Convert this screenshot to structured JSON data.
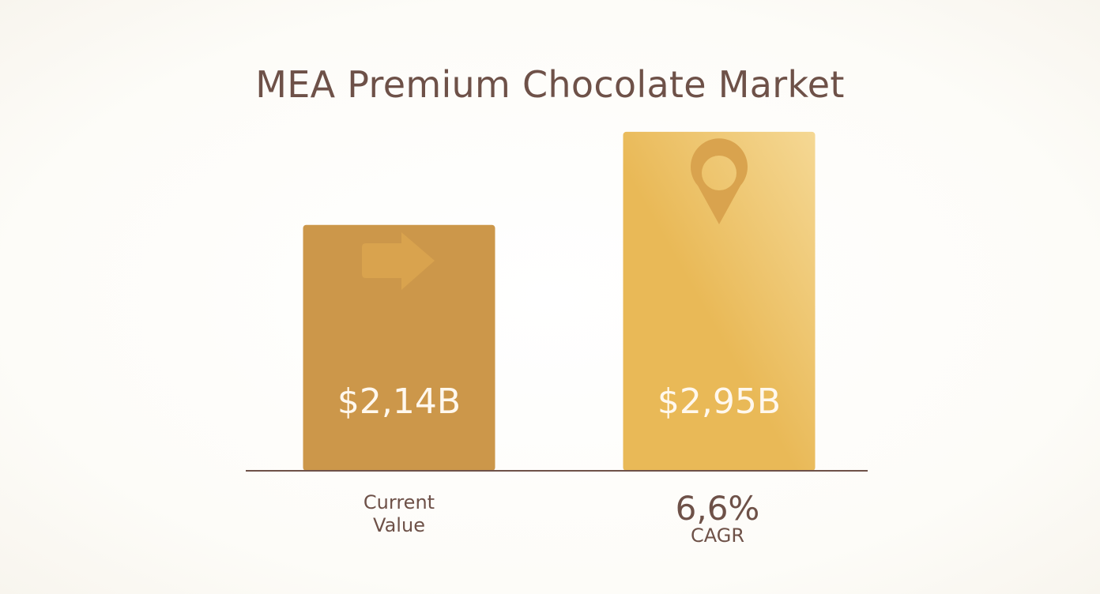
{
  "title": "MEA Premium Chocolate Market",
  "colors": {
    "title_text": "#6e5148",
    "bar_current": "#cc974a",
    "bar_future_light": "#f5d894",
    "bar_future_dark": "#e9b957",
    "icon": "#d9a34e",
    "baseline": "#6e5148",
    "bar_label": "#fff8ee"
  },
  "icons": {
    "left": "right-arrow-icon",
    "right": "map-pin-icon"
  },
  "labels": {
    "current_line1": "Current",
    "current_line2": "Value",
    "cagr_value": "6,6%",
    "cagr_label": "CAGR"
  },
  "chart_data": {
    "type": "bar",
    "categories": [
      "Current Value",
      ""
    ],
    "values": [
      2.14,
      2.95
    ],
    "value_labels": [
      "$2,14B",
      "$2,95B"
    ],
    "title": "MEA Premium Chocolate Market",
    "xlabel": "",
    "ylabel": "",
    "ylim": [
      0,
      3.3
    ],
    "grid": false,
    "annotations": [
      "6,6%",
      "CAGR"
    ]
  }
}
